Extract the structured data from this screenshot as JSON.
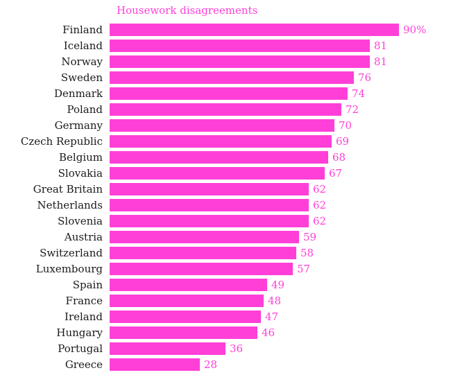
{
  "chart_data": {
    "type": "bar",
    "orientation": "horizontal",
    "title": "Housework disagreements",
    "categories": [
      "Finland",
      "Iceland",
      "Norway",
      "Sweden",
      "Denmark",
      "Poland",
      "Germany",
      "Czech Republic",
      "Belgium",
      "Slovakia",
      "Great Britain",
      "Netherlands",
      "Slovenia",
      "Austria",
      "Switzerland",
      "Luxembourg",
      "Spain",
      "France",
      "Ireland",
      "Hungary",
      "Portugal",
      "Greece"
    ],
    "values": [
      90,
      81,
      81,
      76,
      74,
      72,
      70,
      69,
      68,
      67,
      62,
      62,
      62,
      59,
      58,
      57,
      49,
      48,
      47,
      46,
      36,
      28
    ],
    "value_labels": [
      "90%",
      "81",
      "81",
      "76",
      "74",
      "72",
      "70",
      "69",
      "68",
      "67",
      "62",
      "62",
      "62",
      "59",
      "58",
      "57",
      "49",
      "48",
      "47",
      "46",
      "36",
      "28"
    ],
    "xlim": [
      0,
      90
    ],
    "grid": "off",
    "legend": "none",
    "bar_color": "#ff3fd8",
    "title_color": "#ff3fd8",
    "value_color": "#ff3fd8",
    "label_color": "#1a1a1a"
  }
}
